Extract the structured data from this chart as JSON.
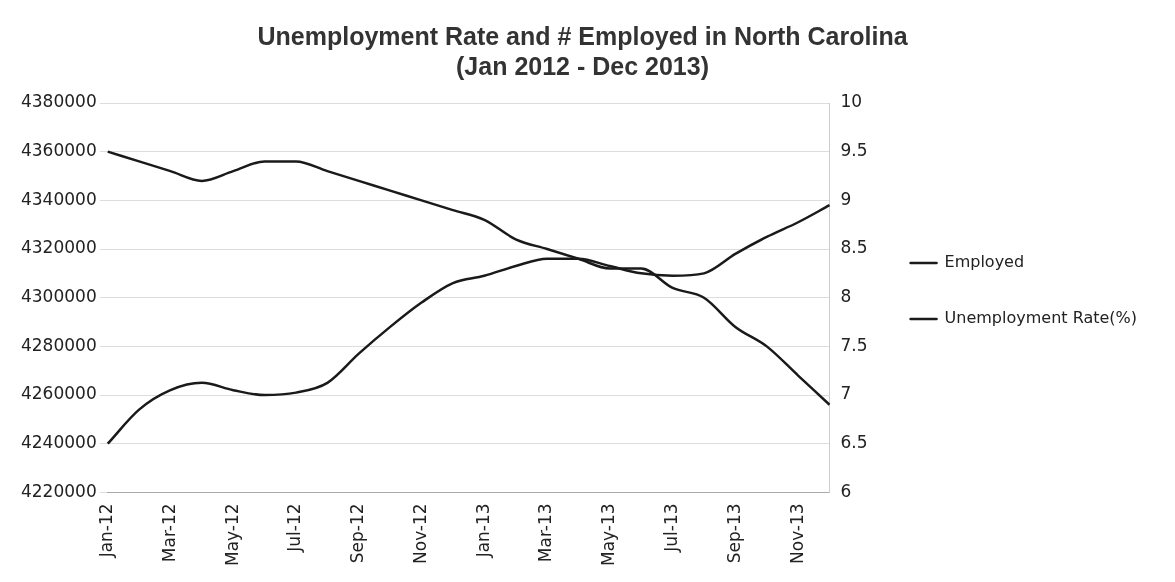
{
  "chart_data": {
    "type": "line",
    "title": [
      "Unemployment Rate and # Employed in North Carolina",
      "(Jan 2012 - Dec 2013)"
    ],
    "categories": [
      "Jan-12",
      null,
      "Mar-12",
      null,
      "May-12",
      null,
      "Jul-12",
      null,
      "Sep-12",
      null,
      "Nov-12",
      null,
      "Jan-13",
      null,
      "Mar-13",
      null,
      "May-13",
      null,
      "Jul-13",
      null,
      "Sep-13",
      null,
      "Nov-13",
      null
    ],
    "series": [
      {
        "name": "Employed",
        "color": "#1a1a1a",
        "values": [
          4240000,
          4254000,
          4262000,
          4265000,
          4262000,
          4260000,
          4261000,
          4265000,
          4277000,
          4288000,
          4298000,
          4306000,
          4309000,
          4313000,
          4316000,
          4316000,
          4313000,
          4310000,
          4309000,
          4310000,
          4318000,
          4325000,
          4331000,
          4338000
        ]
      },
      {
        "name": "Unemployment Rate(%)",
        "color": "#1a1a1a",
        "axis": "y2",
        "values": [
          9.5,
          9.4,
          9.3,
          9.2,
          9.3,
          9.4,
          9.4,
          9.3,
          9.2,
          9.1,
          9.0,
          8.9,
          8.8,
          8.6,
          8.5,
          8.4,
          8.3,
          8.3,
          8.1,
          8.0,
          7.7,
          7.5,
          7.2,
          6.9
        ]
      }
    ],
    "ylim": [
      4220000,
      4380000
    ],
    "yticks": [
      4220000,
      4240000,
      4260000,
      4280000,
      4300000,
      4320000,
      4340000,
      4360000,
      4380000
    ],
    "y2lim": [
      6,
      10
    ],
    "y2ticks": [
      6,
      6.5,
      7,
      7.5,
      8,
      8.5,
      9,
      9.5,
      10
    ],
    "grid": "y",
    "legend": "right",
    "marker": "none",
    "line_style": "solid"
  }
}
